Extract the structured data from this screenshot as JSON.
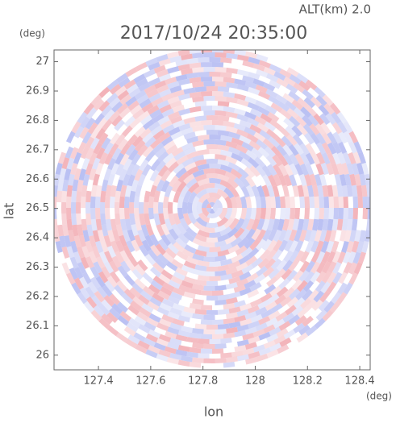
{
  "chart_data": {
    "type": "field",
    "title": "2017/10/24 20:35:00",
    "subtitle": "ALT(km) 2.0",
    "xlabel": "lon",
    "ylabel": "lat",
    "xunit": "(deg)",
    "yunit": "(deg)",
    "xlim": [
      127.23,
      128.44
    ],
    "ylim": [
      25.95,
      27.04
    ],
    "xticks": [
      127.4,
      127.6,
      127.8,
      128.0,
      128.2,
      128.4
    ],
    "yticks": [
      26.0,
      26.1,
      26.2,
      26.3,
      26.4,
      26.5,
      26.6,
      26.7,
      26.8,
      26.9,
      27.0
    ]
  }
}
